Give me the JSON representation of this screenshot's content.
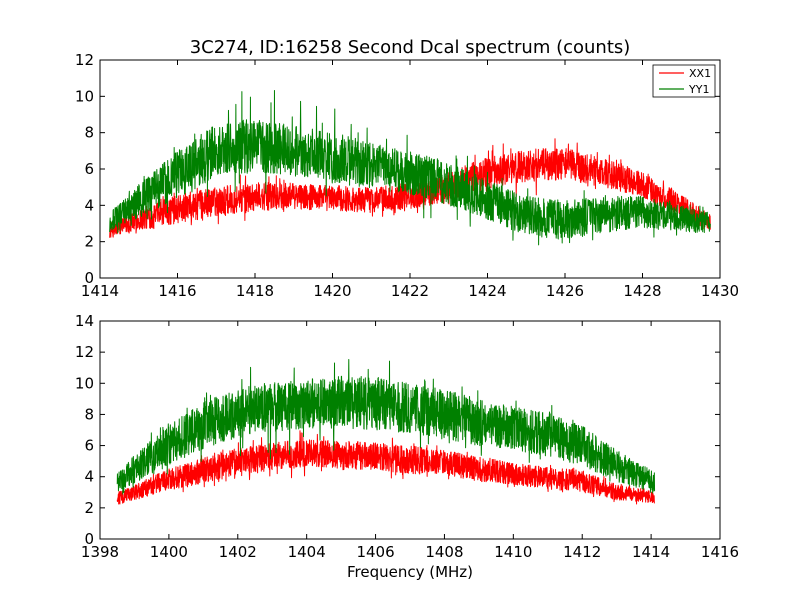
{
  "chart_data": [
    {
      "type": "line",
      "title": "3C274, ID:16258 Second Dcal spectrum (counts)",
      "xlabel": "",
      "ylabel": "",
      "xlim": [
        1414,
        1430
      ],
      "ylim": [
        0,
        12
      ],
      "xticks": [
        "1414",
        "1416",
        "1418",
        "1420",
        "1422",
        "1424",
        "1426",
        "1428",
        "1430"
      ],
      "yticks": [
        "0",
        "2",
        "4",
        "6",
        "8",
        "10",
        "12"
      ],
      "x_data_range": [
        1414.25,
        1429.75
      ],
      "legend": {
        "position": "top-right",
        "entries": [
          "XX1",
          "YY1"
        ]
      },
      "series": [
        {
          "name": "XX1",
          "color": "#ff0000",
          "x": [
            1414.25,
            1415,
            1416,
            1417,
            1418,
            1419,
            1420,
            1421,
            1422,
            1423,
            1424,
            1425,
            1426,
            1427,
            1428,
            1429,
            1429.75
          ],
          "y": [
            2.6,
            3.2,
            3.8,
            4.2,
            4.5,
            4.5,
            4.4,
            4.3,
            4.5,
            5.0,
            5.8,
            6.2,
            6.3,
            5.8,
            5.1,
            4.0,
            3.0
          ],
          "noise": [
            0.4,
            0.6,
            0.8,
            0.8,
            0.8,
            0.7,
            0.7,
            0.7,
            0.7,
            0.8,
            0.9,
            0.9,
            0.9,
            0.8,
            0.7,
            0.6,
            0.5
          ],
          "spike": [
            0.5,
            0.8,
            1.1,
            1.3,
            1.3,
            1.0,
            1.0,
            1.0,
            1.0,
            1.2,
            1.5,
            1.7,
            1.9,
            1.3,
            1.0,
            0.7,
            0.6
          ]
        },
        {
          "name": "YY1",
          "color": "#008000",
          "x": [
            1414.25,
            1415,
            1416,
            1417,
            1418,
            1419,
            1420,
            1421,
            1422,
            1423,
            1424,
            1425,
            1426,
            1427,
            1428,
            1429,
            1429.75
          ],
          "y": [
            3.1,
            4.2,
            5.7,
            7.0,
            7.3,
            7.0,
            6.6,
            6.2,
            5.8,
            5.2,
            4.3,
            3.4,
            3.2,
            3.5,
            3.6,
            3.3,
            3.0
          ],
          "noise": [
            0.5,
            0.9,
            1.3,
            1.5,
            1.5,
            1.4,
            1.4,
            1.3,
            1.2,
            1.2,
            1.1,
            1.1,
            1.1,
            1.0,
            0.9,
            0.7,
            0.6
          ],
          "spike": [
            0.8,
            1.3,
            1.9,
            2.6,
            3.5,
            2.9,
            2.8,
            2.5,
            2.5,
            2.2,
            1.8,
            1.6,
            1.5,
            1.5,
            1.4,
            1.0,
            0.8
          ]
        }
      ]
    },
    {
      "type": "line",
      "title": "",
      "xlabel": "Frequency (MHz)",
      "ylabel": "",
      "xlim": [
        1398,
        1416
      ],
      "ylim": [
        0,
        14
      ],
      "xticks": [
        "1398",
        "1400",
        "1402",
        "1404",
        "1406",
        "1408",
        "1410",
        "1412",
        "1414",
        "1416"
      ],
      "yticks": [
        "0",
        "2",
        "4",
        "6",
        "8",
        "10",
        "12",
        "14"
      ],
      "x_data_range": [
        1398.5,
        1414.1
      ],
      "series": [
        {
          "name": "XX1",
          "color": "#ff0000",
          "x": [
            1398.5,
            1399,
            1400,
            1401,
            1402,
            1403,
            1404,
            1405,
            1406,
            1407,
            1408,
            1409,
            1410,
            1411,
            1412,
            1413,
            1414.1
          ],
          "y": [
            2.6,
            3.0,
            3.8,
            4.4,
            4.9,
            5.3,
            5.5,
            5.4,
            5.3,
            5.1,
            4.9,
            4.5,
            4.2,
            3.9,
            3.7,
            3.0,
            2.7
          ],
          "noise": [
            0.4,
            0.5,
            0.7,
            0.8,
            0.9,
            0.9,
            0.9,
            0.9,
            0.9,
            0.9,
            0.8,
            0.8,
            0.7,
            0.7,
            0.7,
            0.5,
            0.4
          ],
          "spike": [
            0.5,
            0.7,
            1.0,
            1.2,
            1.4,
            1.5,
            1.5,
            1.3,
            1.3,
            1.3,
            1.1,
            1.0,
            0.9,
            0.9,
            0.9,
            0.7,
            0.5
          ]
        },
        {
          "name": "YY1",
          "color": "#008000",
          "x": [
            1398.5,
            1399,
            1400,
            1401,
            1402,
            1403,
            1404,
            1405,
            1406,
            1407,
            1408,
            1409,
            1410,
            1411,
            1412,
            1413,
            1414.1
          ],
          "y": [
            3.6,
            4.5,
            6.0,
            7.3,
            8.1,
            8.5,
            8.7,
            8.8,
            8.7,
            8.4,
            8.0,
            7.5,
            7.1,
            6.7,
            6.0,
            4.7,
            3.6
          ],
          "noise": [
            0.6,
            0.9,
            1.3,
            1.5,
            1.6,
            1.6,
            1.6,
            1.7,
            1.7,
            1.6,
            1.6,
            1.5,
            1.4,
            1.4,
            1.3,
            1.0,
            0.7
          ],
          "spike": [
            0.9,
            1.3,
            1.9,
            2.5,
            3.0,
            3.5,
            3.0,
            3.4,
            3.3,
            2.7,
            2.4,
            2.2,
            2.0,
            2.0,
            1.8,
            1.3,
            1.0
          ]
        }
      ]
    }
  ]
}
